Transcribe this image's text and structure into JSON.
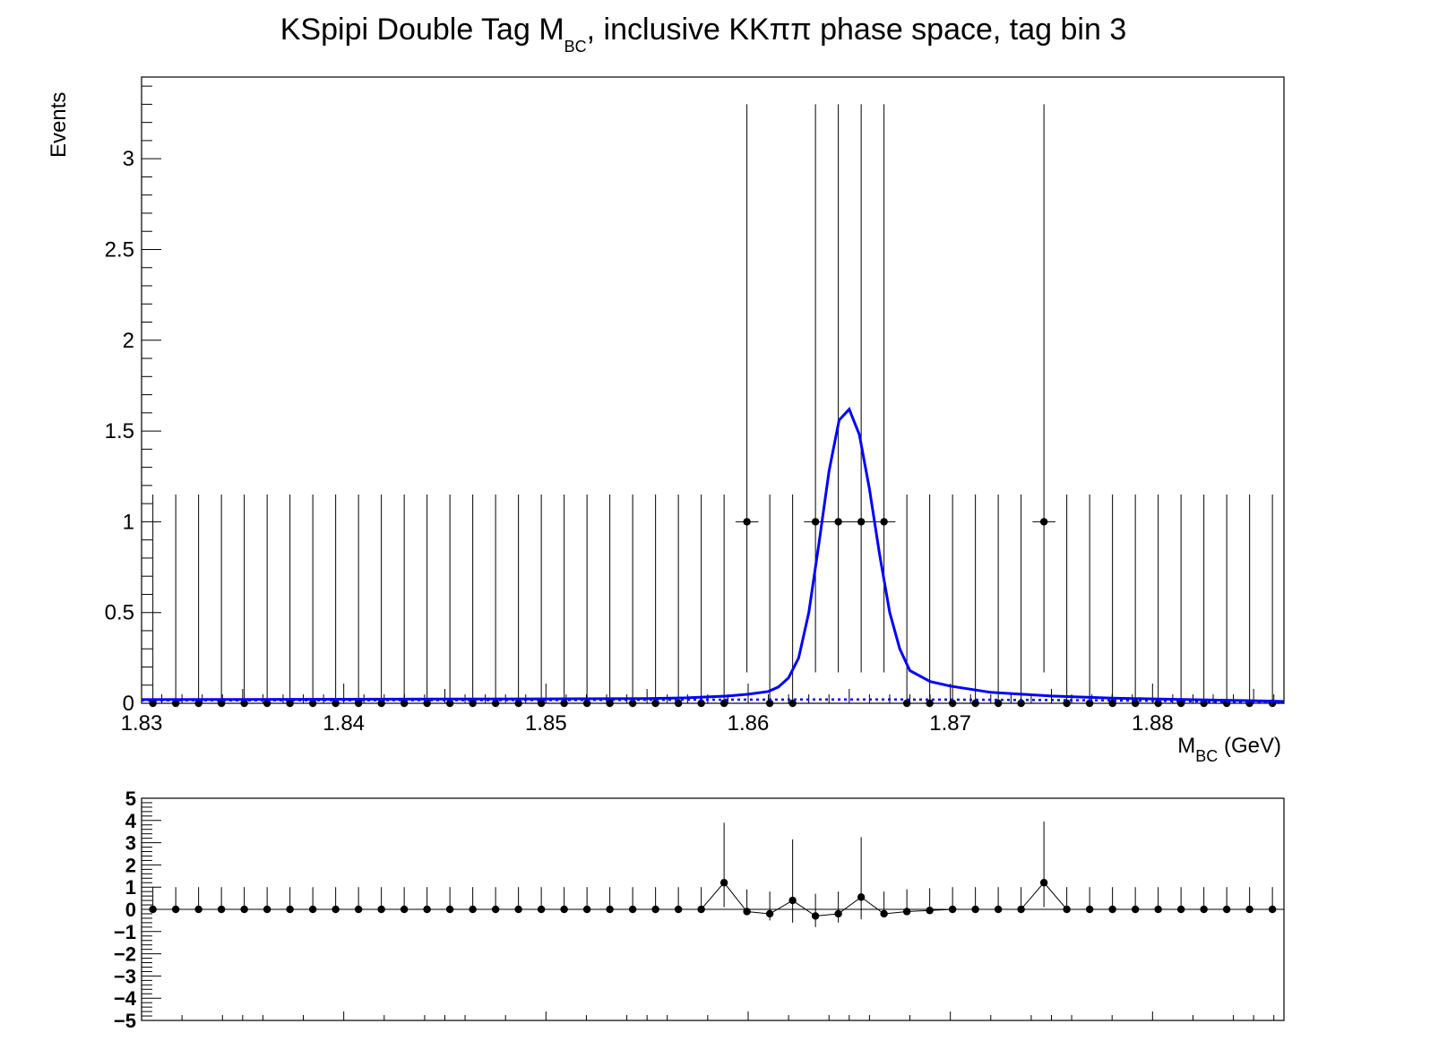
{
  "chart_data": [
    {
      "type": "scatter",
      "title": "KSpipi Double Tag M",
      "title_sub": "BC",
      "title_rest": ", inclusive KKππ phase space, tag bin 3",
      "xlabel": "M",
      "xlabel_sub": "BC",
      "xlabel_rest": " (GeV)",
      "ylabel": "Events",
      "xlim": [
        1.83,
        1.8865
      ],
      "ylim": [
        0,
        3.45
      ],
      "xticks": [
        "1.83",
        "1.84",
        "1.85",
        "1.86",
        "1.87",
        "1.88"
      ],
      "yticks": [
        "0",
        "0.5",
        "1",
        "1.5",
        "2",
        "2.5",
        "3"
      ],
      "grid": false,
      "bin_width": 0.00113,
      "x_first": 1.83056,
      "nbins": 50,
      "data_nonzero_bins": [
        26,
        29,
        30,
        31,
        32,
        39
      ],
      "data_values_note": "all other bins are 0",
      "err_zero_up": 1.15,
      "err_one_low": 0.83,
      "err_one_up": 2.3,
      "series": [
        {
          "name": "",
          "color": "#0000ff",
          "style": "solid",
          "x": [
            1.83,
            1.835,
            1.84,
            1.845,
            1.85,
            1.855,
            1.857,
            1.859,
            1.86,
            1.861,
            1.8615,
            1.862,
            1.8625,
            1.863,
            1.8635,
            1.864,
            1.8645,
            1.865,
            1.8655,
            1.866,
            1.8665,
            1.867,
            1.8675,
            1.868,
            1.869,
            1.87,
            1.872,
            1.875,
            1.878,
            1.88,
            1.883,
            1.886,
            1.8865
          ],
          "y": [
            0.02,
            0.021,
            0.022,
            0.023,
            0.024,
            0.026,
            0.03,
            0.04,
            0.05,
            0.065,
            0.09,
            0.14,
            0.25,
            0.5,
            0.88,
            1.28,
            1.56,
            1.62,
            1.48,
            1.18,
            0.82,
            0.5,
            0.3,
            0.18,
            0.12,
            0.095,
            0.06,
            0.04,
            0.028,
            0.024,
            0.018,
            0.012,
            0.01
          ]
        },
        {
          "name": "",
          "color": "#0000ff",
          "style": "dotted",
          "x": [
            1.83,
            1.85,
            1.86,
            1.865,
            1.87,
            1.875,
            1.88,
            1.885,
            1.8865
          ],
          "y": [
            0.016,
            0.018,
            0.02,
            0.021,
            0.02,
            0.018,
            0.014,
            0.006,
            0.002
          ]
        }
      ]
    },
    {
      "type": "scatter",
      "ylim": [
        -5,
        5
      ],
      "yticks": [
        "5",
        "4",
        "3",
        "2",
        "1",
        "0",
        "−1",
        "−2",
        "−3",
        "−4",
        "−5"
      ],
      "values": [
        0,
        0,
        0,
        0,
        0,
        0,
        0,
        0,
        0,
        0,
        0,
        0,
        0,
        0,
        0,
        0,
        0,
        0,
        0,
        0,
        0,
        0,
        0,
        0,
        0,
        1.2,
        -0.1,
        -0.2,
        0.4,
        -0.3,
        -0.2,
        0.55,
        -0.2,
        -0.1,
        -0.05,
        0,
        0,
        0,
        0,
        1.2,
        0,
        0,
        0,
        0,
        0,
        0,
        0,
        0,
        0,
        0
      ],
      "err_up": [
        1,
        1,
        1,
        1,
        1,
        1,
        1,
        1,
        1,
        1,
        1,
        1,
        1,
        1,
        1,
        1,
        1,
        1,
        1,
        1,
        1,
        1,
        1,
        1,
        1,
        2.7,
        1,
        1,
        2.75,
        1,
        1,
        2.7,
        1,
        1,
        1,
        1,
        1,
        1,
        1,
        2.75,
        1,
        1,
        1,
        1,
        1,
        1,
        1,
        1,
        1,
        1
      ],
      "err_low": [
        0,
        0,
        0,
        0,
        0,
        0,
        0,
        0,
        0,
        0,
        0,
        0,
        0,
        0,
        0,
        0,
        0,
        0,
        0,
        0,
        0,
        0,
        0,
        0,
        0,
        1.1,
        0,
        0.3,
        1.0,
        0.5,
        0.4,
        1.0,
        0,
        0,
        0,
        0,
        0,
        0,
        0,
        1.1,
        0,
        0,
        0,
        0,
        0,
        0,
        0,
        0,
        0,
        0
      ]
    }
  ]
}
